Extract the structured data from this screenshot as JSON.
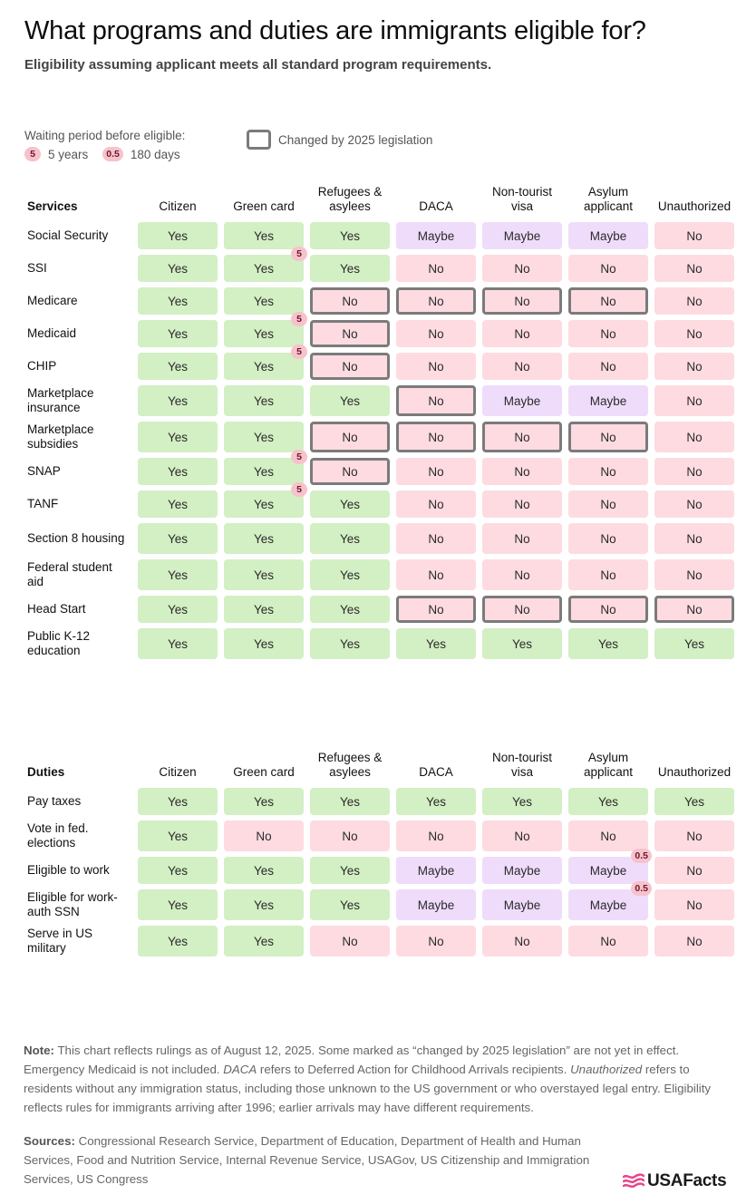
{
  "title": "What programs and duties are immigrants eligible for?",
  "subtitle": "Eligibility assuming applicant meets all standard program requirements.",
  "legend": {
    "waiting_label": "Waiting period before eligible:",
    "badge_5": "5",
    "badge_5_label": "5 years",
    "badge_05": "0.5",
    "badge_05_label": "180 days",
    "changed_label": "Changed by 2025 legislation"
  },
  "colors": {
    "yes": "#d3efc4",
    "no": "#fddbe1",
    "maybe": "#efdcfb",
    "changed_border": "#7b7b7b",
    "badge": "#f7c2cc",
    "logo_accent": "#e8458b"
  },
  "chart_data": {
    "type": "table",
    "columns": [
      "Citizen",
      "Green card",
      "Refugees & asylees",
      "DACA",
      "Non-tourist visa",
      "Asylum applicant",
      "Unauthorized"
    ],
    "sections": [
      {
        "name": "Services",
        "rows": [
          {
            "label": "Social Security",
            "values": [
              "Yes",
              "Yes",
              "Yes",
              "Maybe",
              "Maybe",
              "Maybe",
              "No"
            ],
            "changed": [],
            "badges": {}
          },
          {
            "label": "SSI",
            "values": [
              "Yes",
              "Yes",
              "Yes",
              "No",
              "No",
              "No",
              "No"
            ],
            "changed": [],
            "badges": {
              "1": "5"
            }
          },
          {
            "label": "Medicare",
            "values": [
              "Yes",
              "Yes",
              "No",
              "No",
              "No",
              "No",
              "No"
            ],
            "changed": [
              2,
              3,
              4,
              5
            ],
            "badges": {}
          },
          {
            "label": "Medicaid",
            "values": [
              "Yes",
              "Yes",
              "No",
              "No",
              "No",
              "No",
              "No"
            ],
            "changed": [
              2
            ],
            "badges": {
              "1": "5"
            }
          },
          {
            "label": "CHIP",
            "values": [
              "Yes",
              "Yes",
              "No",
              "No",
              "No",
              "No",
              "No"
            ],
            "changed": [
              2
            ],
            "badges": {
              "1": "5"
            }
          },
          {
            "label": "Marketplace insurance",
            "values": [
              "Yes",
              "Yes",
              "Yes",
              "No",
              "Maybe",
              "Maybe",
              "No"
            ],
            "changed": [
              3
            ],
            "badges": {}
          },
          {
            "label": "Marketplace subsidies",
            "values": [
              "Yes",
              "Yes",
              "No",
              "No",
              "No",
              "No",
              "No"
            ],
            "changed": [
              2,
              3,
              4,
              5
            ],
            "badges": {}
          },
          {
            "label": "SNAP",
            "values": [
              "Yes",
              "Yes",
              "No",
              "No",
              "No",
              "No",
              "No"
            ],
            "changed": [
              2
            ],
            "badges": {
              "1": "5"
            }
          },
          {
            "label": "TANF",
            "values": [
              "Yes",
              "Yes",
              "Yes",
              "No",
              "No",
              "No",
              "No"
            ],
            "changed": [],
            "badges": {
              "1": "5"
            }
          },
          {
            "label": "Section 8 housing",
            "values": [
              "Yes",
              "Yes",
              "Yes",
              "No",
              "No",
              "No",
              "No"
            ],
            "changed": [],
            "badges": {}
          },
          {
            "label": "Federal student aid",
            "values": [
              "Yes",
              "Yes",
              "Yes",
              "No",
              "No",
              "No",
              "No"
            ],
            "changed": [],
            "badges": {}
          },
          {
            "label": "Head Start",
            "values": [
              "Yes",
              "Yes",
              "Yes",
              "No",
              "No",
              "No",
              "No"
            ],
            "changed": [
              3,
              4,
              5,
              6
            ],
            "badges": {}
          },
          {
            "label": "Public K-12 education",
            "values": [
              "Yes",
              "Yes",
              "Yes",
              "Yes",
              "Yes",
              "Yes",
              "Yes"
            ],
            "changed": [],
            "badges": {}
          }
        ]
      },
      {
        "name": "Duties",
        "rows": [
          {
            "label": "Pay taxes",
            "values": [
              "Yes",
              "Yes",
              "Yes",
              "Yes",
              "Yes",
              "Yes",
              "Yes"
            ],
            "changed": [],
            "badges": {}
          },
          {
            "label": "Vote in fed. elections",
            "values": [
              "Yes",
              "No",
              "No",
              "No",
              "No",
              "No",
              "No"
            ],
            "changed": [],
            "badges": {}
          },
          {
            "label": "Eligible to work",
            "values": [
              "Yes",
              "Yes",
              "Yes",
              "Maybe",
              "Maybe",
              "Maybe",
              "No"
            ],
            "changed": [],
            "badges": {
              "5": "0.5"
            }
          },
          {
            "label": "Eligible for work-auth SSN",
            "values": [
              "Yes",
              "Yes",
              "Yes",
              "Maybe",
              "Maybe",
              "Maybe",
              "No"
            ],
            "changed": [],
            "badges": {
              "5": "0.5"
            }
          },
          {
            "label": "Serve in US military",
            "values": [
              "Yes",
              "Yes",
              "No",
              "No",
              "No",
              "No",
              "No"
            ],
            "changed": [],
            "badges": {}
          }
        ]
      }
    ]
  },
  "note": {
    "label": "Note:",
    "text_1": " This chart reflects rulings as of August 12, 2025. Some marked as “changed by 2025 legislation” are not yet in effect. Emergency Medicaid is not included. ",
    "term_daca": "DACA",
    "text_2": " refers to Deferred Action for Childhood Arrivals recipients. ",
    "term_unauth": "Unauthorized",
    "text_3": " refers to residents without any immigration status, including those unknown to the US government or who overstayed legal entry. Eligibility reflects rules for immigrants arriving after 1996; earlier arrivals may have different requirements."
  },
  "sources": {
    "label": "Sources:",
    "text": " Congressional Research Service, Department of Education, Department of Health and Human Services, Food and Nutrition Service, Internal Revenue Service, USAGov, US Citizenship and Immigration Services, US Congress"
  },
  "logo": {
    "text": "USAFacts",
    "icon": "usafacts-flag-icon"
  }
}
